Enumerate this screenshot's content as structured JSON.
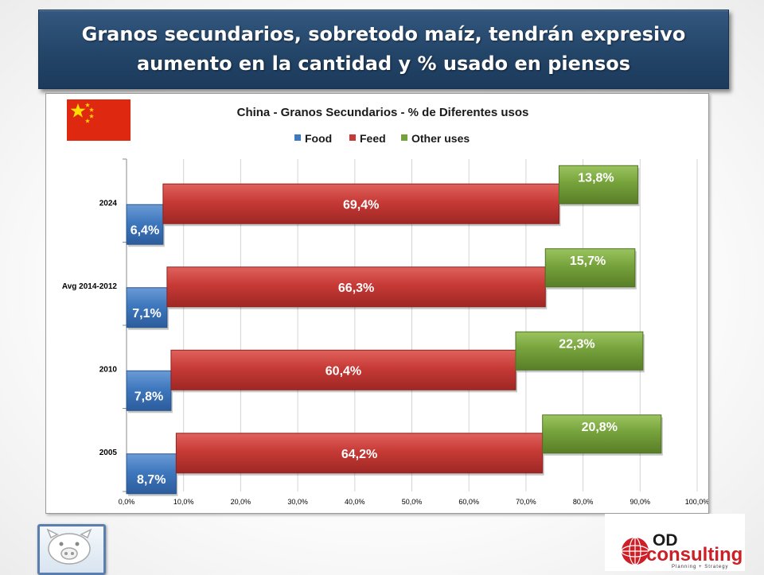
{
  "slide": {
    "title_line1": "Granos secundarios, sobretodo maíz, tendrán expresivo",
    "title_line2": "aumento en la cantidad y % usado en piensos"
  },
  "logos": {
    "flag": "china-flag",
    "left_logo": "pig-icon",
    "right_logo": {
      "brand": "OD",
      "name": "consulting",
      "tagline": "Planning + Strategy"
    }
  },
  "colors": {
    "food": "#3f78be",
    "feed": "#c73a36",
    "other": "#76a23c",
    "banner": "#234568"
  },
  "chart_data": {
    "type": "bar",
    "orientation": "horizontal",
    "title": "China - Granos Secundarios - % de Diferentes usos",
    "categories": [
      "2024",
      "Avg 2014-2012",
      "2010",
      "2005"
    ],
    "series": [
      {
        "name": "Food",
        "values": [
          6.4,
          7.1,
          7.8,
          8.7
        ],
        "labels": [
          "6,4%",
          "7,1%",
          "7,8%",
          "8,7%"
        ]
      },
      {
        "name": "Feed",
        "values": [
          69.4,
          66.3,
          60.4,
          64.2
        ],
        "labels": [
          "69,4%",
          "66,3%",
          "60,4%",
          "64,2%"
        ]
      },
      {
        "name": "Other uses",
        "values": [
          13.8,
          15.7,
          22.3,
          20.8
        ],
        "labels": [
          "13,8%",
          "15,7%",
          "22,3%",
          "20,8%"
        ]
      }
    ],
    "xlim": [
      0,
      100
    ],
    "x_ticks": [
      "0,0%",
      "10,0%",
      "20,0%",
      "30,0%",
      "40,0%",
      "50,0%",
      "60,0%",
      "70,0%",
      "80,0%",
      "90,0%",
      "100,0%"
    ],
    "grid": "vertical",
    "legend": "top-center"
  }
}
